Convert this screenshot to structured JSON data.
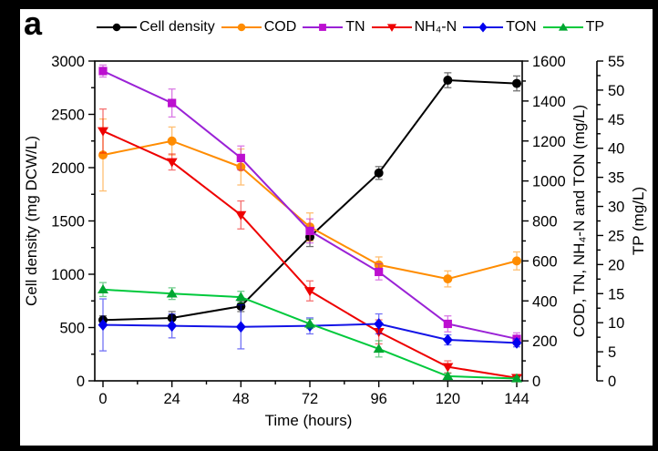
{
  "page": {
    "panel_label": "a",
    "background_color": "#000000",
    "figure_background": "#FFFFFF"
  },
  "chart_data": {
    "type": "line",
    "x": [
      0,
      24,
      48,
      72,
      96,
      120,
      144
    ],
    "x_axis": {
      "title": "Time (hours)",
      "min": 0,
      "max": 144,
      "major_step": 24,
      "minor_step": 12
    },
    "axes": {
      "left": {
        "title": "Cell density (mg DCW/L)",
        "min": 0,
        "max": 3000,
        "major_step": 500,
        "minor_step": 250
      },
      "right1": {
        "title": "COD, TN, NH₄-N and TON (mg/L)",
        "min": 0,
        "max": 1600,
        "major_step": 200,
        "minor_step": 100
      },
      "right2": {
        "title": "TP (mg/L)",
        "min": 0,
        "max": 55,
        "major_step": 5,
        "minor_step": 2.5
      }
    },
    "legend_position": "top",
    "grid": false,
    "series": [
      {
        "name": "Cell density",
        "axis": "left",
        "marker": "circle",
        "color": "#000000",
        "marker_color": "#000000",
        "values": [
          570,
          590,
          700,
          1350,
          1950,
          2820,
          2790
        ],
        "errors": [
          40,
          60,
          50,
          90,
          60,
          70,
          70
        ]
      },
      {
        "name": "COD",
        "axis": "right1",
        "marker": "circle",
        "color": "#FF8C00",
        "marker_color": "#FF8C00",
        "values": [
          1130,
          1200,
          1070,
          770,
          580,
          510,
          600
        ],
        "errors": [
          180,
          70,
          90,
          70,
          40,
          40,
          45
        ]
      },
      {
        "name": "TN",
        "axis": "right1",
        "marker": "square",
        "color": "#9A22D6",
        "marker_color": "#BC0FD0",
        "values": [
          1550,
          1390,
          1115,
          750,
          545,
          285,
          210
        ],
        "errors": [
          30,
          70,
          60,
          60,
          40,
          40,
          30
        ]
      },
      {
        "name": "NH₄-N",
        "axis": "right1",
        "marker": "triangle-down",
        "color": "#EE0000",
        "marker_color": "#EE0000",
        "values": [
          1250,
          1095,
          830,
          450,
          245,
          70,
          15
        ],
        "errors": [
          110,
          40,
          70,
          50,
          60,
          30,
          15
        ]
      },
      {
        "name": "TON",
        "axis": "right1",
        "marker": "diamond",
        "color": "#1414E6",
        "marker_color": "#0000EE",
        "values": [
          280,
          275,
          270,
          275,
          285,
          205,
          190
        ],
        "errors": [
          130,
          60,
          110,
          40,
          50,
          25,
          20
        ]
      },
      {
        "name": "TP",
        "axis": "right2",
        "marker": "triangle-up",
        "color": "#00C93C",
        "marker_color": "#00A631",
        "values": [
          15.7,
          15.0,
          14.4,
          9.8,
          5.5,
          0.8,
          0.4
        ],
        "errors": [
          1.2,
          1.0,
          1.0,
          0.8,
          1.4,
          0.5,
          0.3
        ]
      }
    ]
  }
}
